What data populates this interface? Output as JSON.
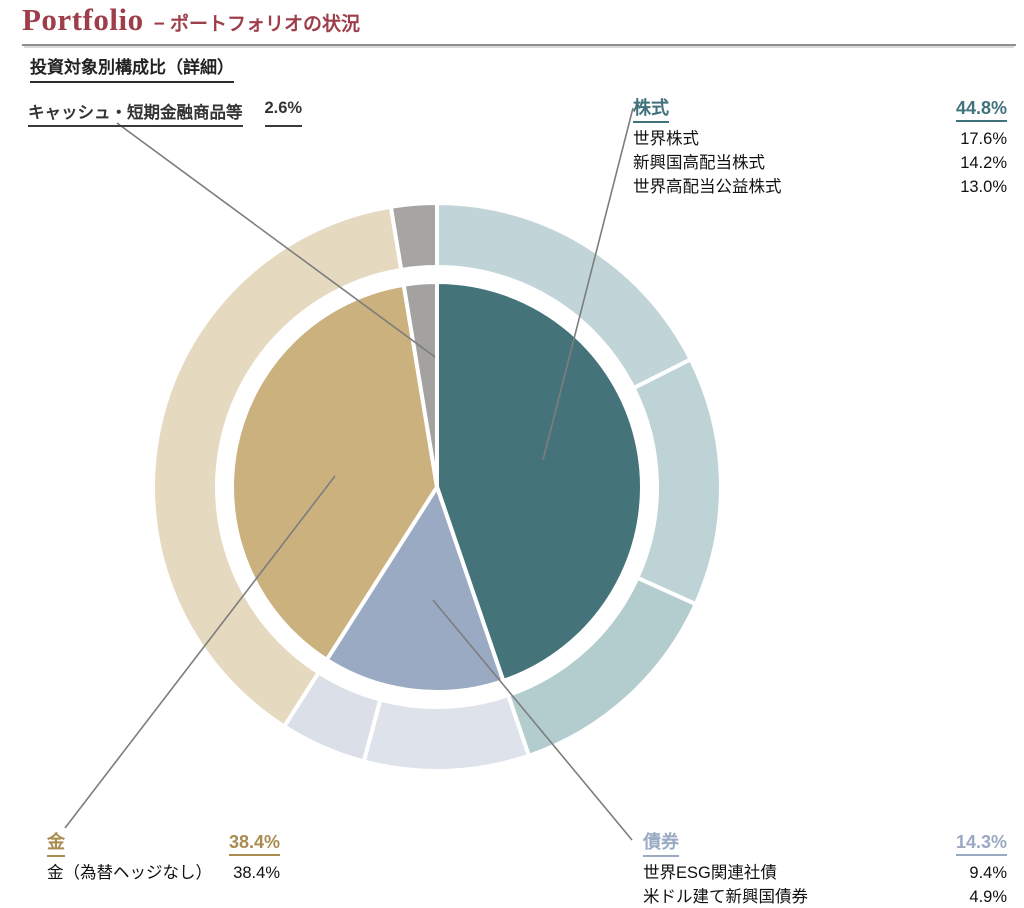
{
  "header": {
    "title_en": "Portfolio",
    "title_ja": "− ポートフォリオの状況",
    "accent_color": "#9d3e4a"
  },
  "section": {
    "title": "投資対象別構成比（詳細）"
  },
  "callouts": {
    "cash": {
      "label": "キャッシュ・短期金融商品等",
      "value": "2.6%",
      "color": "#3a3a3a"
    },
    "equity": {
      "label": "株式",
      "value": "44.8%",
      "color": "#40727b",
      "rows": [
        {
          "label": "世界株式",
          "value": "17.6%"
        },
        {
          "label": "新興国高配当株式",
          "value": "14.2%"
        },
        {
          "label": "世界高配当公益株式",
          "value": "13.0%"
        }
      ]
    },
    "gold": {
      "label": "金",
      "value": "38.4%",
      "color": "#a98c50",
      "rows": [
        {
          "label": "金（為替ヘッジなし）",
          "value": "38.4%"
        }
      ]
    },
    "bond": {
      "label": "債券",
      "value": "14.3%",
      "color": "#9aaac3",
      "rows": [
        {
          "label": "世界ESG関連社債",
          "value": "9.4%"
        },
        {
          "label": "米ドル建て新興国債券",
          "value": "4.9%"
        }
      ]
    }
  },
  "chart_data": {
    "type": "pie",
    "variant": "double-ring-donut",
    "title": "投資対象別構成比（詳細）",
    "units": "percent",
    "inner_ring_role": "major asset classes",
    "outer_ring_role": "sub asset breakdown",
    "inner_series": [
      {
        "name": "株式",
        "value": 44.8,
        "color": "#44747a"
      },
      {
        "name": "債券",
        "value": 14.3,
        "color": "#9aaac2"
      },
      {
        "name": "金",
        "value": 38.4,
        "color": "#cab17e"
      },
      {
        "name": "キャッシュ・短期金融商品等",
        "value": 2.6,
        "color": "#a3a2a0"
      }
    ],
    "outer_series": [
      {
        "name": "世界株式",
        "value": 17.6,
        "color": "#c1d5d8"
      },
      {
        "name": "新興国高配当株式",
        "value": 14.2,
        "color": "#bdd3d6"
      },
      {
        "name": "世界高配当公益株式",
        "value": 13.0,
        "color": "#b3cdcf"
      },
      {
        "name": "世界ESG関連社債",
        "value": 9.4,
        "color": "#dee2ea"
      },
      {
        "name": "米ドル建て新興国債券",
        "value": 4.9,
        "color": "#dbe0e8"
      },
      {
        "name": "金（為替ヘッジなし）",
        "value": 38.4,
        "color": "#e5d9bf"
      },
      {
        "name": "キャッシュ・短期金融商品等",
        "value": 2.6,
        "color": "#a6a5a3"
      }
    ],
    "start_angle_deg": 0,
    "direction": "clockwise",
    "leader_line_color": "#7d7d7d"
  }
}
